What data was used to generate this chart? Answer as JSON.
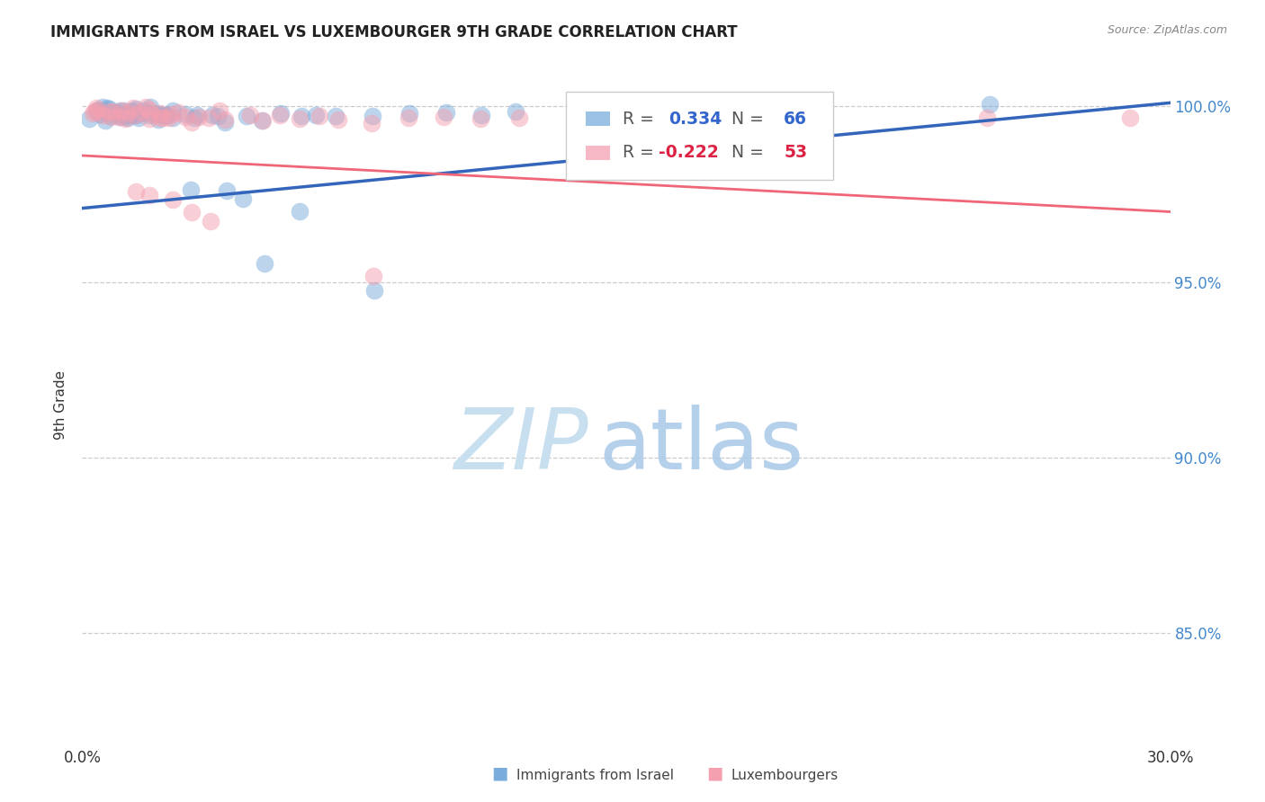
{
  "title": "IMMIGRANTS FROM ISRAEL VS LUXEMBOURGER 9TH GRADE CORRELATION CHART",
  "source": "Source: ZipAtlas.com",
  "ylabel_label": "9th Grade",
  "ytick_labels": [
    "85.0%",
    "90.0%",
    "95.0%",
    "100.0%"
  ],
  "ytick_values": [
    0.85,
    0.9,
    0.95,
    1.0
  ],
  "xlim": [
    0.0,
    0.3
  ],
  "ylim": [
    0.818,
    1.012
  ],
  "blue_R": 0.334,
  "pink_R": -0.222,
  "blue_N": 66,
  "pink_N": 53,
  "blue_color": "#7aacdc",
  "pink_color": "#f4a0b0",
  "blue_line_color": "#3366bb",
  "pink_line_color": "#ee6677",
  "blue_line_x0": 0.0,
  "blue_line_y0": 0.971,
  "blue_line_x1": 0.3,
  "blue_line_y1": 1.001,
  "pink_line_x0": 0.0,
  "pink_line_y0": 0.986,
  "pink_line_x1": 0.3,
  "pink_line_y1": 0.97,
  "blue_scatter_x": [
    0.002,
    0.003,
    0.004,
    0.005,
    0.005,
    0.006,
    0.006,
    0.007,
    0.007,
    0.008,
    0.008,
    0.009,
    0.009,
    0.01,
    0.01,
    0.011,
    0.011,
    0.012,
    0.012,
    0.013,
    0.013,
    0.014,
    0.014,
    0.015,
    0.015,
    0.016,
    0.016,
    0.017,
    0.018,
    0.018,
    0.019,
    0.02,
    0.02,
    0.021,
    0.022,
    0.023,
    0.024,
    0.025,
    0.026,
    0.028,
    0.03,
    0.032,
    0.035,
    0.038,
    0.04,
    0.045,
    0.05,
    0.055,
    0.06,
    0.065,
    0.07,
    0.08,
    0.09,
    0.1,
    0.11,
    0.12,
    0.14,
    0.16,
    0.2,
    0.25,
    0.03,
    0.04,
    0.045,
    0.05,
    0.06,
    0.08
  ],
  "blue_scatter_y": [
    0.997,
    0.998,
    0.999,
    1.0,
    0.998,
    0.999,
    0.997,
    0.999,
    0.998,
    0.999,
    0.997,
    0.998,
    0.999,
    0.997,
    0.998,
    0.999,
    0.998,
    0.997,
    0.999,
    0.998,
    0.997,
    0.999,
    0.998,
    0.997,
    0.999,
    0.998,
    0.997,
    0.999,
    0.998,
    0.997,
    0.999,
    0.998,
    0.996,
    0.997,
    0.998,
    0.997,
    0.998,
    0.996,
    0.998,
    0.997,
    0.996,
    0.997,
    0.998,
    0.997,
    0.995,
    0.997,
    0.996,
    0.998,
    0.997,
    0.998,
    0.997,
    0.997,
    0.998,
    0.998,
    0.997,
    0.999,
    0.998,
    0.997,
    0.997,
    1.0,
    0.976,
    0.976,
    0.974,
    0.955,
    0.97,
    0.948
  ],
  "pink_scatter_x": [
    0.002,
    0.003,
    0.004,
    0.005,
    0.006,
    0.007,
    0.008,
    0.009,
    0.01,
    0.011,
    0.012,
    0.013,
    0.014,
    0.015,
    0.016,
    0.017,
    0.018,
    0.019,
    0.02,
    0.021,
    0.022,
    0.023,
    0.024,
    0.025,
    0.026,
    0.028,
    0.03,
    0.032,
    0.035,
    0.038,
    0.04,
    0.045,
    0.05,
    0.055,
    0.06,
    0.065,
    0.07,
    0.08,
    0.09,
    0.1,
    0.11,
    0.12,
    0.14,
    0.16,
    0.2,
    0.25,
    0.29,
    0.015,
    0.02,
    0.025,
    0.03,
    0.035,
    0.08
  ],
  "pink_scatter_y": [
    0.998,
    0.999,
    1.0,
    0.999,
    0.998,
    0.999,
    0.997,
    0.999,
    0.998,
    0.999,
    0.997,
    0.998,
    0.999,
    0.997,
    0.998,
    0.999,
    0.997,
    0.998,
    0.999,
    0.997,
    0.998,
    0.997,
    0.998,
    0.997,
    0.998,
    0.997,
    0.996,
    0.997,
    0.997,
    0.998,
    0.996,
    0.997,
    0.996,
    0.997,
    0.996,
    0.997,
    0.997,
    0.995,
    0.996,
    0.997,
    0.996,
    0.997,
    0.996,
    0.997,
    1.0,
    0.996,
    0.997,
    0.975,
    0.975,
    0.973,
    0.97,
    0.968,
    0.952
  ]
}
